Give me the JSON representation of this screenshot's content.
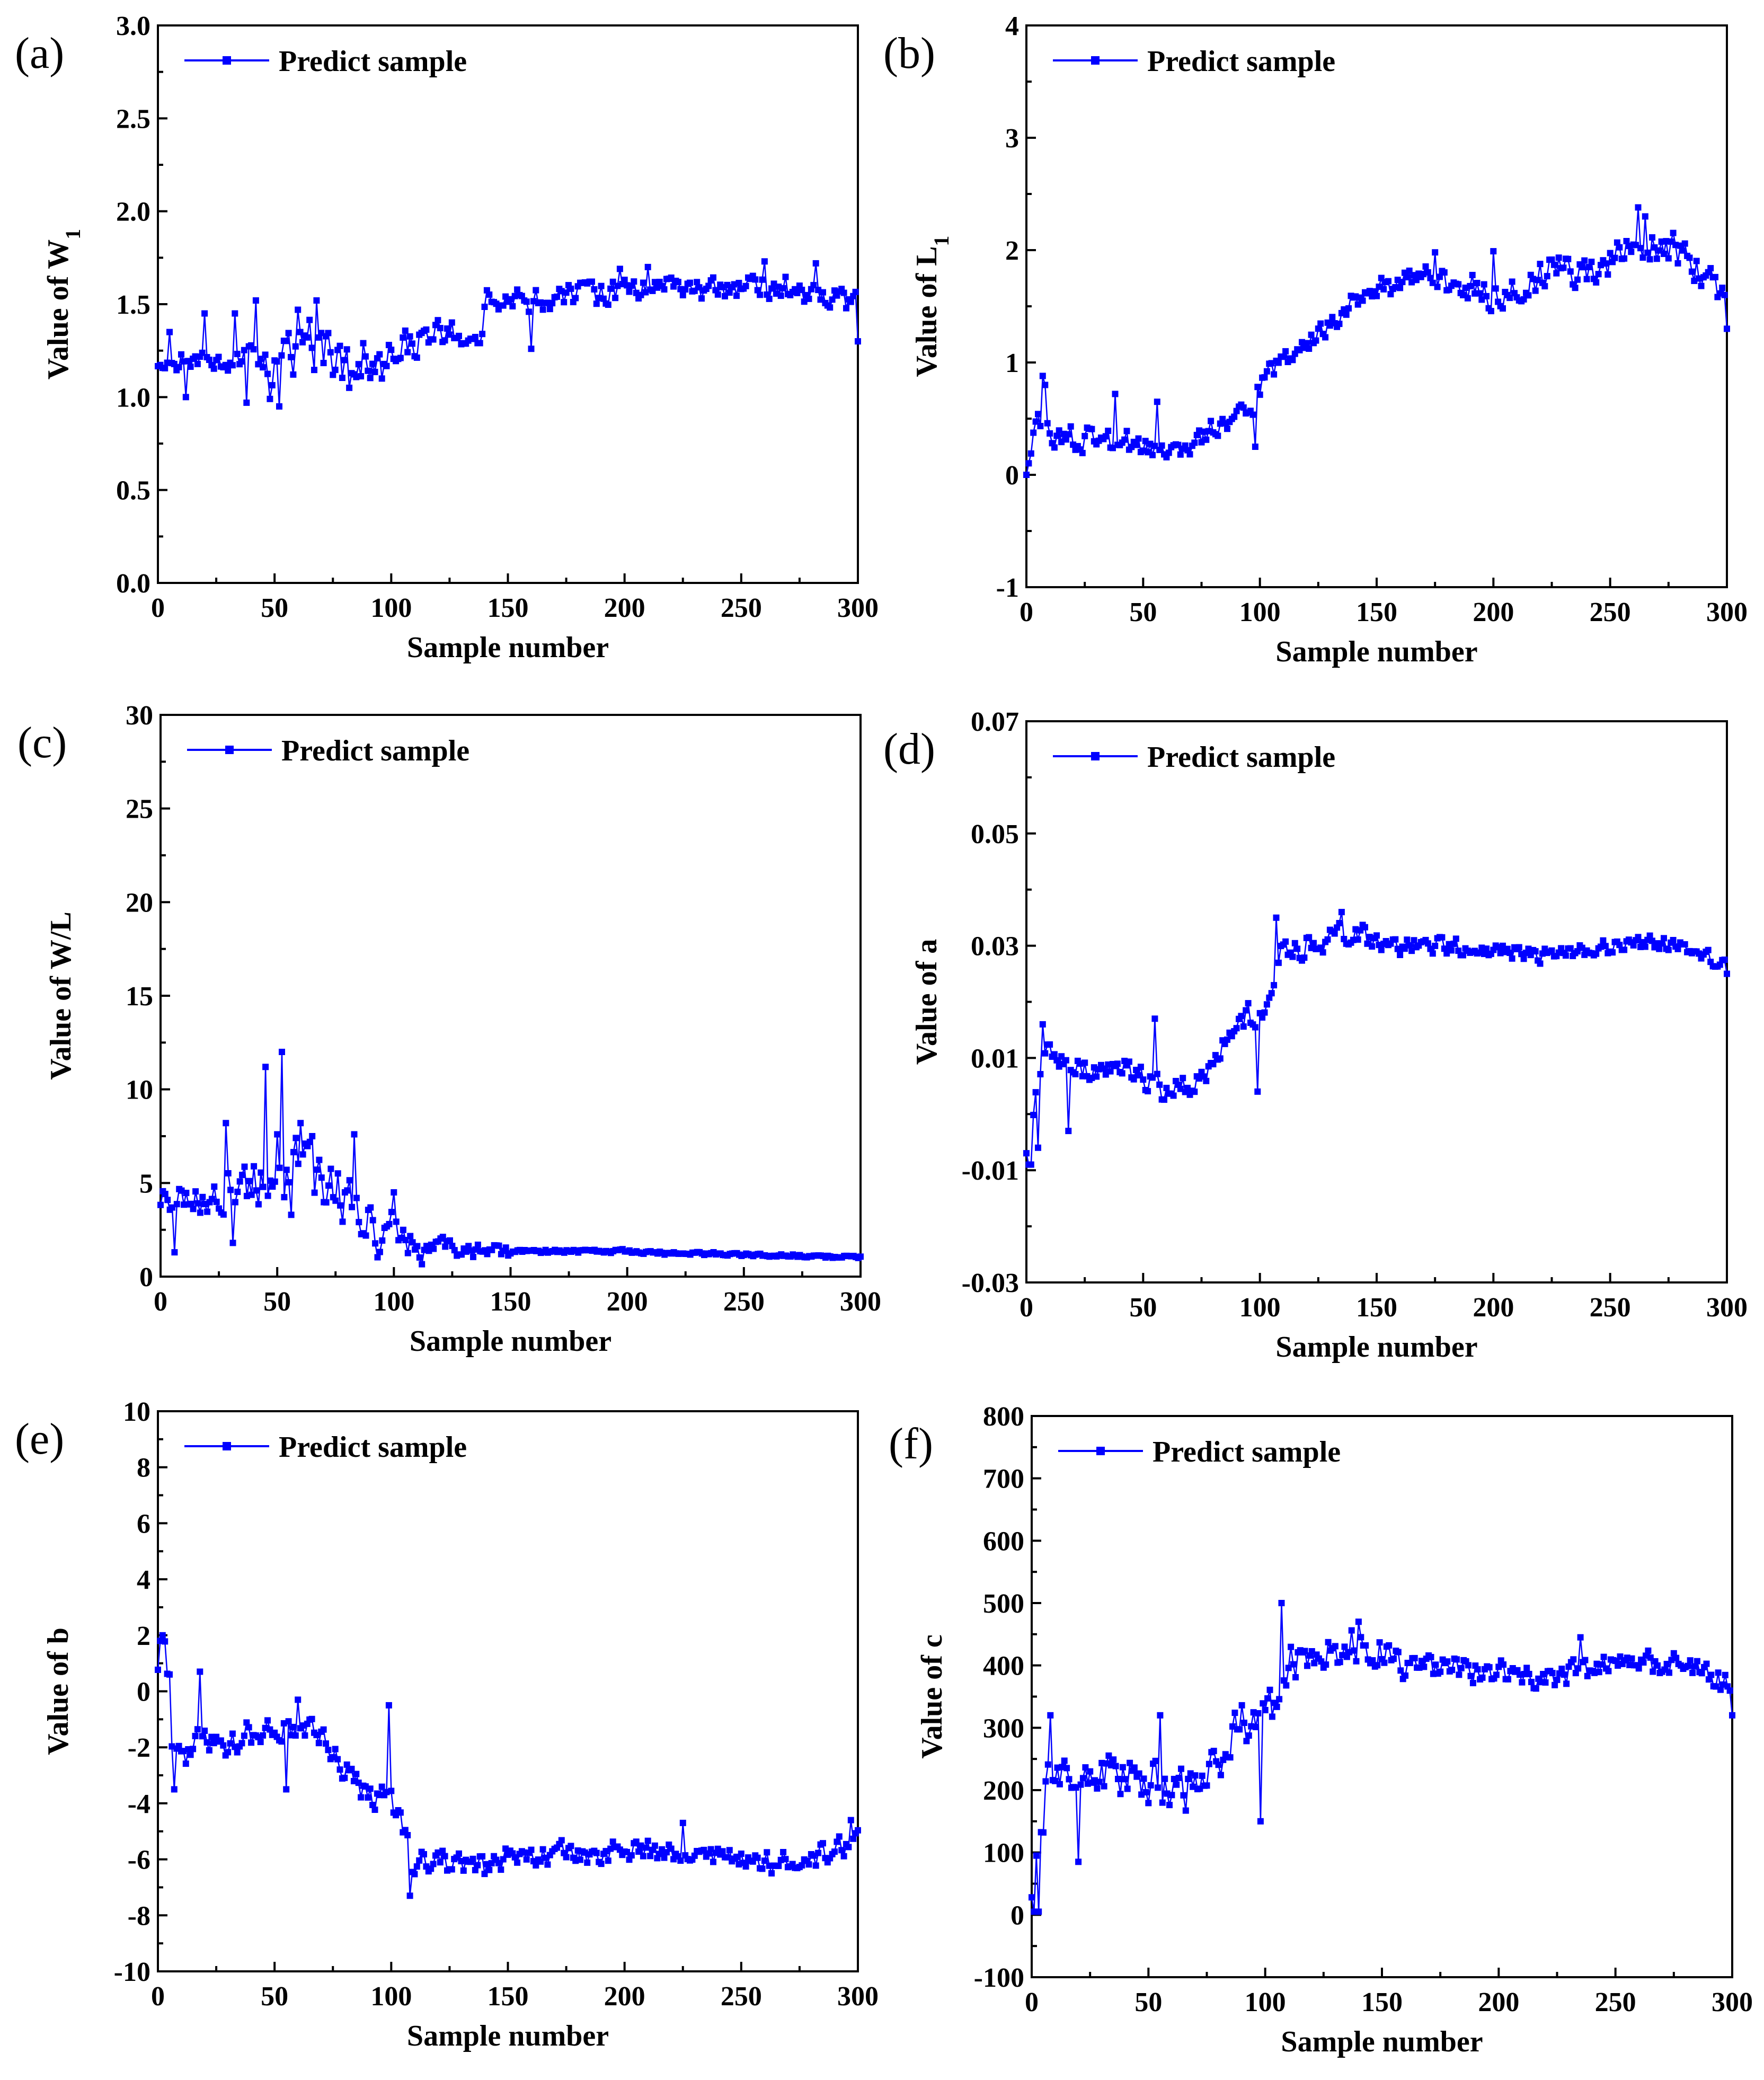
{
  "series_color": "#0000ff",
  "series_count": 300,
  "charts": [
    {
      "panel": "(a)",
      "type": "line",
      "title": "",
      "ylabel": "Value of W",
      "ylabel_sub": "1",
      "xlabel": "Sample number",
      "xlim": [
        0,
        300
      ],
      "ylim": [
        0,
        3
      ],
      "xticks": [
        "0",
        "50",
        "100",
        "150",
        "200",
        "250",
        "300"
      ],
      "yticks": [
        "0.0",
        "0.5",
        "1.0",
        "1.5",
        "2.0",
        "2.5",
        "3.0"
      ],
      "legend": "Predict sample",
      "legend_position": "top-left",
      "anchors": [
        [
          0,
          1.15
        ],
        [
          10,
          1.2
        ],
        [
          20,
          1.2
        ],
        [
          30,
          1.15
        ],
        [
          40,
          1.25
        ],
        [
          50,
          1.15
        ],
        [
          60,
          1.3
        ],
        [
          70,
          1.3
        ],
        [
          80,
          1.15
        ],
        [
          90,
          1.15
        ],
        [
          100,
          1.25
        ],
        [
          110,
          1.3
        ],
        [
          120,
          1.35
        ],
        [
          130,
          1.35
        ],
        [
          138,
          1.35
        ],
        [
          142,
          1.55
        ],
        [
          150,
          1.5
        ],
        [
          160,
          1.5
        ],
        [
          170,
          1.55
        ],
        [
          180,
          1.55
        ],
        [
          190,
          1.55
        ],
        [
          200,
          1.58
        ],
        [
          210,
          1.6
        ],
        [
          220,
          1.6
        ],
        [
          230,
          1.58
        ],
        [
          240,
          1.57
        ],
        [
          250,
          1.58
        ],
        [
          260,
          1.6
        ],
        [
          270,
          1.58
        ],
        [
          280,
          1.55
        ],
        [
          290,
          1.55
        ],
        [
          300,
          1.5
        ]
      ],
      "noise": [
        0.06,
        0.06,
        0.17,
        0.17,
        0.13,
        0.1,
        0.09,
        0.08,
        0.08,
        0.08,
        0.08,
        0.08,
        0.08,
        0.08,
        0.08,
        0.08
      ],
      "spikes": [
        [
          5,
          1.35
        ],
        [
          12,
          1.0
        ],
        [
          20,
          1.45
        ],
        [
          33,
          1.45
        ],
        [
          38,
          0.97
        ],
        [
          42,
          1.52
        ],
        [
          48,
          0.99
        ],
        [
          52,
          0.95
        ],
        [
          60,
          1.47
        ],
        [
          68,
          1.52
        ],
        [
          75,
          1.12
        ],
        [
          82,
          1.05
        ],
        [
          88,
          1.29
        ],
        [
          96,
          1.1
        ],
        [
          160,
          1.26
        ],
        [
          198,
          1.69
        ],
        [
          210,
          1.7
        ],
        [
          260,
          1.73
        ],
        [
          282,
          1.72
        ],
        [
          300,
          1.3
        ]
      ]
    },
    {
      "panel": "(b)",
      "type": "line",
      "title": "",
      "ylabel": "Value of L",
      "ylabel_sub": "1",
      "xlabel": "Sample number",
      "xlim": [
        0,
        300
      ],
      "ylim": [
        -1,
        4
      ],
      "xticks": [
        "0",
        "50",
        "100",
        "150",
        "200",
        "250",
        "300"
      ],
      "yticks": [
        "-1",
        "0",
        "1",
        "2",
        "3",
        "4"
      ],
      "legend": "Predict sample",
      "legend_position": "top-left",
      "anchors": [
        [
          0,
          0.15
        ],
        [
          3,
          0.3
        ],
        [
          7,
          0.55
        ],
        [
          10,
          0.3
        ],
        [
          20,
          0.3
        ],
        [
          30,
          0.3
        ],
        [
          40,
          0.3
        ],
        [
          50,
          0.25
        ],
        [
          60,
          0.2
        ],
        [
          70,
          0.25
        ],
        [
          80,
          0.4
        ],
        [
          90,
          0.55
        ],
        [
          98,
          0.6
        ],
        [
          102,
          0.9
        ],
        [
          110,
          1.05
        ],
        [
          120,
          1.2
        ],
        [
          130,
          1.3
        ],
        [
          140,
          1.55
        ],
        [
          150,
          1.65
        ],
        [
          160,
          1.7
        ],
        [
          170,
          1.8
        ],
        [
          180,
          1.7
        ],
        [
          190,
          1.65
        ],
        [
          200,
          1.62
        ],
        [
          210,
          1.65
        ],
        [
          220,
          1.75
        ],
        [
          230,
          1.85
        ],
        [
          240,
          1.8
        ],
        [
          250,
          1.95
        ],
        [
          260,
          2.05
        ],
        [
          270,
          2.0
        ],
        [
          280,
          1.95
        ],
        [
          290,
          1.8
        ],
        [
          300,
          1.6
        ]
      ],
      "noise": [
        0.13,
        0.15,
        0.15,
        0.09,
        0.12,
        0.15,
        0.13,
        0.1,
        0.12,
        0.12,
        0.17,
        0.18,
        0.19,
        0.2,
        0.22,
        0.22
      ],
      "spikes": [
        [
          0,
          0.0
        ],
        [
          7,
          0.88
        ],
        [
          8,
          0.8
        ],
        [
          38,
          0.72
        ],
        [
          56,
          0.65
        ],
        [
          98,
          0.25
        ],
        [
          175,
          1.98
        ],
        [
          200,
          1.99
        ],
        [
          262,
          2.38
        ],
        [
          265,
          2.3
        ],
        [
          300,
          1.3
        ]
      ]
    },
    {
      "panel": "(c)",
      "type": "line",
      "title": "",
      "ylabel": "Value of W/L",
      "ylabel_sub": "",
      "xlabel": "Sample number",
      "xlim": [
        0,
        300
      ],
      "ylim": [
        0,
        30
      ],
      "xticks": [
        "0",
        "50",
        "100",
        "150",
        "200",
        "250",
        "300"
      ],
      "yticks": [
        "0",
        "5",
        "10",
        "15",
        "20",
        "25",
        "30"
      ],
      "legend": "Predict sample",
      "legend_position": "top-left",
      "anchors": [
        [
          0,
          4.0
        ],
        [
          10,
          4.0
        ],
        [
          20,
          4.5
        ],
        [
          30,
          4.5
        ],
        [
          40,
          5.0
        ],
        [
          50,
          5.0
        ],
        [
          60,
          5.8
        ],
        [
          70,
          5.5
        ],
        [
          80,
          4.0
        ],
        [
          90,
          2.8
        ],
        [
          100,
          2.5
        ],
        [
          110,
          1.7
        ],
        [
          120,
          1.5
        ],
        [
          150,
          1.35
        ],
        [
          200,
          1.35
        ],
        [
          220,
          1.25
        ],
        [
          260,
          1.15
        ],
        [
          300,
          1.05
        ]
      ],
      "noise": [
        1.0,
        1.3,
        1.9,
        2.0,
        1.8,
        1.2,
        0.7,
        0.45,
        0.15,
        0.12,
        0.12,
        0.12,
        0.12,
        0.1,
        0.1,
        0.1
      ],
      "spikes": [
        [
          6,
          1.3
        ],
        [
          28,
          8.2
        ],
        [
          31,
          1.8
        ],
        [
          45,
          11.2
        ],
        [
          50,
          7.6
        ],
        [
          52,
          12.0
        ],
        [
          56,
          3.3
        ],
        [
          60,
          8.2
        ],
        [
          65,
          7.5
        ],
        [
          83,
          7.6
        ],
        [
          100,
          4.5
        ]
      ]
    },
    {
      "panel": "(d)",
      "type": "line",
      "title": "",
      "ylabel": "Value of a",
      "ylabel_sub": "",
      "xlabel": "Sample number",
      "xlim": [
        0,
        300
      ],
      "ylim": [
        -0.03,
        0.07
      ],
      "xticks": [
        "0",
        "50",
        "100",
        "150",
        "200",
        "250",
        "300"
      ],
      "yticks": [
        "-0.03",
        "-0.01",
        "0.01",
        "0.03",
        "0.05",
        "0.07"
      ],
      "legend": "Predict sample",
      "legend_position": "top-left",
      "anchors": [
        [
          0,
          -0.005
        ],
        [
          3,
          0.0
        ],
        [
          6,
          0.008
        ],
        [
          10,
          0.01
        ],
        [
          20,
          0.008
        ],
        [
          30,
          0.008
        ],
        [
          40,
          0.008
        ],
        [
          50,
          0.007
        ],
        [
          60,
          0.004
        ],
        [
          70,
          0.005
        ],
        [
          80,
          0.01
        ],
        [
          90,
          0.016
        ],
        [
          100,
          0.018
        ],
        [
          105,
          0.02
        ],
        [
          110,
          0.03
        ],
        [
          120,
          0.03
        ],
        [
          130,
          0.032
        ],
        [
          140,
          0.032
        ],
        [
          150,
          0.031
        ],
        [
          160,
          0.03
        ],
        [
          170,
          0.03
        ],
        [
          180,
          0.03
        ],
        [
          190,
          0.029
        ],
        [
          200,
          0.029
        ],
        [
          210,
          0.029
        ],
        [
          220,
          0.028
        ],
        [
          230,
          0.029
        ],
        [
          240,
          0.029
        ],
        [
          250,
          0.03
        ],
        [
          260,
          0.031
        ],
        [
          270,
          0.03
        ],
        [
          280,
          0.03
        ],
        [
          290,
          0.028
        ],
        [
          300,
          0.027
        ]
      ],
      "noise": [
        0.003,
        0.003,
        0.003,
        0.0028,
        0.003,
        0.0032,
        0.003,
        0.0025,
        0.002,
        0.0018,
        0.0017,
        0.0017,
        0.0017,
        0.0017,
        0.0017,
        0.0017
      ],
      "spikes": [
        [
          1,
          -0.009
        ],
        [
          2,
          -0.009
        ],
        [
          5,
          -0.006
        ],
        [
          7,
          0.016
        ],
        [
          18,
          -0.003
        ],
        [
          55,
          0.017
        ],
        [
          99,
          0.004
        ],
        [
          107,
          0.035
        ],
        [
          135,
          0.036
        ],
        [
          300,
          0.025
        ]
      ]
    },
    {
      "panel": "(e)",
      "type": "line",
      "title": "",
      "ylabel": "Value of b",
      "ylabel_sub": "",
      "xlabel": "Sample number",
      "xlim": [
        0,
        300
      ],
      "ylim": [
        -10,
        10
      ],
      "xticks": [
        "0",
        "50",
        "100",
        "150",
        "200",
        "250",
        "300"
      ],
      "yticks": [
        "-10",
        "-8",
        "-6",
        "-4",
        "-2",
        "0",
        "2",
        "4",
        "6",
        "8",
        "10"
      ],
      "legend": "Predict sample",
      "legend_position": "top-left",
      "anchors": [
        [
          0,
          0.5
        ],
        [
          3,
          1.5
        ],
        [
          6,
          -1.5
        ],
        [
          10,
          -2.2
        ],
        [
          20,
          -1.8
        ],
        [
          30,
          -1.8
        ],
        [
          40,
          -1.5
        ],
        [
          50,
          -1.3
        ],
        [
          60,
          -1.2
        ],
        [
          70,
          -1.5
        ],
        [
          80,
          -2.8
        ],
        [
          90,
          -3.8
        ],
        [
          100,
          -3.8
        ],
        [
          104,
          -4.5
        ],
        [
          108,
          -6.0
        ],
        [
          120,
          -6.0
        ],
        [
          130,
          -6.0
        ],
        [
          140,
          -6.3
        ],
        [
          150,
          -6.0
        ],
        [
          160,
          -5.9
        ],
        [
          170,
          -5.7
        ],
        [
          180,
          -5.8
        ],
        [
          190,
          -5.8
        ],
        [
          200,
          -5.7
        ],
        [
          210,
          -5.7
        ],
        [
          220,
          -5.7
        ],
        [
          230,
          -5.8
        ],
        [
          240,
          -5.9
        ],
        [
          250,
          -6.0
        ],
        [
          260,
          -6.1
        ],
        [
          270,
          -6.0
        ],
        [
          280,
          -6.0
        ],
        [
          290,
          -5.7
        ],
        [
          300,
          -5.3
        ]
      ],
      "noise": [
        0.7,
        0.6,
        0.6,
        0.6,
        0.6,
        0.6,
        0.55,
        0.5,
        0.45,
        0.45,
        0.45,
        0.45,
        0.45,
        0.45,
        0.45,
        0.45
      ],
      "spikes": [
        [
          1,
          1.8
        ],
        [
          2,
          2.0
        ],
        [
          5,
          0.6
        ],
        [
          7,
          -3.5
        ],
        [
          18,
          0.7
        ],
        [
          55,
          -3.5
        ],
        [
          60,
          -0.3
        ],
        [
          99,
          -0.5
        ],
        [
          108,
          -7.3
        ],
        [
          225,
          -4.7
        ],
        [
          297,
          -4.6
        ]
      ]
    },
    {
      "panel": "(f)",
      "type": "line",
      "title": "",
      "ylabel": "Value of c",
      "ylabel_sub": "",
      "xlabel": "Sample number",
      "xlim": [
        0,
        300
      ],
      "ylim": [
        -100,
        800
      ],
      "xticks": [
        "0",
        "50",
        "100",
        "150",
        "200",
        "250",
        "300"
      ],
      "yticks": [
        "-100",
        "0",
        "100",
        "200",
        "300",
        "400",
        "500",
        "600",
        "700",
        "800"
      ],
      "legend": "Predict sample",
      "legend_position": "top-left",
      "anchors": [
        [
          0,
          40
        ],
        [
          3,
          80
        ],
        [
          6,
          200
        ],
        [
          10,
          240
        ],
        [
          20,
          230
        ],
        [
          30,
          230
        ],
        [
          40,
          230
        ],
        [
          50,
          215
        ],
        [
          60,
          210
        ],
        [
          70,
          200
        ],
        [
          80,
          240
        ],
        [
          90,
          310
        ],
        [
          100,
          320
        ],
        [
          105,
          340
        ],
        [
          110,
          420
        ],
        [
          120,
          410
        ],
        [
          130,
          420
        ],
        [
          140,
          440
        ],
        [
          150,
          420
        ],
        [
          160,
          400
        ],
        [
          170,
          400
        ],
        [
          180,
          395
        ],
        [
          190,
          390
        ],
        [
          200,
          390
        ],
        [
          210,
          385
        ],
        [
          220,
          380
        ],
        [
          230,
          390
        ],
        [
          240,
          395
        ],
        [
          250,
          400
        ],
        [
          260,
          405
        ],
        [
          270,
          405
        ],
        [
          280,
          400
        ],
        [
          290,
          380
        ],
        [
          300,
          360
        ]
      ],
      "noise": [
        45,
        45,
        45,
        40,
        40,
        40,
        38,
        35,
        28,
        25,
        25,
        25,
        25,
        25,
        25,
        25
      ],
      "spikes": [
        [
          1,
          5
        ],
        [
          2,
          95
        ],
        [
          3,
          5
        ],
        [
          8,
          320
        ],
        [
          20,
          85
        ],
        [
          55,
          320
        ],
        [
          98,
          150
        ],
        [
          107,
          500
        ],
        [
          140,
          470
        ],
        [
          235,
          445
        ],
        [
          300,
          320
        ]
      ]
    }
  ]
}
